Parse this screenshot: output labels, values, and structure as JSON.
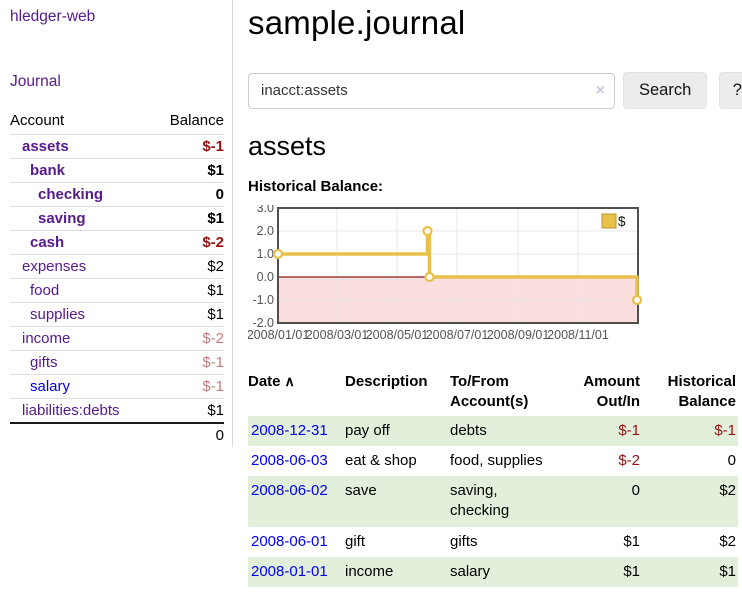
{
  "sidebar": {
    "app_title": "hledger-web",
    "journal_link": "Journal",
    "accounts_table": {
      "headers": [
        "Account",
        "Balance"
      ],
      "rows": [
        {
          "account": "assets",
          "balance": "$-1",
          "indent": 1,
          "bold": true,
          "balance_style": "neg-strong",
          "link_color": "purple"
        },
        {
          "account": "bank",
          "balance": "$1",
          "indent": 2,
          "bold": true,
          "balance_style": "",
          "link_color": "purple"
        },
        {
          "account": "checking",
          "balance": "0",
          "indent": 3,
          "bold": true,
          "balance_style": "",
          "link_color": "purple"
        },
        {
          "account": "saving",
          "balance": "$1",
          "indent": 3,
          "bold": true,
          "balance_style": "",
          "link_color": "purple"
        },
        {
          "account": "cash",
          "balance": "$-2",
          "indent": 2,
          "bold": true,
          "balance_style": "neg-strong",
          "link_color": "purple"
        },
        {
          "account": "expenses",
          "balance": "$2",
          "indent": 1,
          "bold": false,
          "balance_style": "",
          "link_color": "purple"
        },
        {
          "account": "food",
          "balance": "$1",
          "indent": 2,
          "bold": false,
          "balance_style": "",
          "link_color": "purple"
        },
        {
          "account": "supplies",
          "balance": "$1",
          "indent": 2,
          "bold": false,
          "balance_style": "",
          "link_color": "purple"
        },
        {
          "account": "income",
          "balance": "$-2",
          "indent": 1,
          "bold": false,
          "balance_style": "neg-muted",
          "link_color": "purple"
        },
        {
          "account": "gifts",
          "balance": "$-1",
          "indent": 2,
          "bold": false,
          "balance_style": "neg-muted",
          "link_color": "purple"
        },
        {
          "account": "salary",
          "balance": "$-1",
          "indent": 2,
          "bold": false,
          "balance_style": "neg-muted",
          "link_color": "blue"
        },
        {
          "account": "liabilities:debts",
          "balance": "$1",
          "indent": 1,
          "bold": false,
          "balance_style": "",
          "link_color": "purple"
        }
      ],
      "total": "0"
    }
  },
  "main": {
    "title": "sample.journal",
    "search": {
      "value": "inacct:assets",
      "clear_icon": "×",
      "search_button": "Search",
      "help_button": "?"
    },
    "account_heading": "assets",
    "chart_label": "Historical Balance:"
  },
  "chart_data": {
    "type": "line",
    "mode": "step-after",
    "title": "Historical Balance",
    "series": [
      {
        "name": "$",
        "color": "#e8c04a",
        "points": [
          [
            "2008-01-01",
            1
          ],
          [
            "2008-06-01",
            2
          ],
          [
            "2008-06-03",
            0
          ],
          [
            "2008-12-31",
            -1
          ]
        ]
      }
    ],
    "x_domain": [
      "2008-01-01",
      "2009-01-01"
    ],
    "ylim": [
      -2,
      3
    ],
    "yticks": [
      "3.0",
      "2.0",
      "1.0",
      "0.0",
      "-1.0",
      "-2.0"
    ],
    "xticks": [
      "2008/01/01",
      "2008/03/01",
      "2008/05/01",
      "2008/07/01",
      "2008/09/01",
      "2008/11/01"
    ],
    "legend": "$",
    "legend_position": "top-right",
    "grid": true,
    "negative_region_fill": "#fbdfdf",
    "zero_line_color": "#8b1a1a",
    "grid_color": "#e8e8e8",
    "border_color": "#4f4f4f"
  },
  "register": {
    "headers": [
      {
        "lines": [
          "Date"
        ],
        "align": "left",
        "sort": "asc"
      },
      {
        "lines": [
          "Description"
        ],
        "align": "left"
      },
      {
        "lines": [
          "To/From",
          "Account(s)"
        ],
        "align": "left"
      },
      {
        "lines": [
          "Amount",
          "Out/In"
        ],
        "align": "right"
      },
      {
        "lines": [
          "Historical",
          "Balance"
        ],
        "align": "right"
      }
    ],
    "sort_icon": "∧",
    "rows": [
      {
        "date": "2008-12-31",
        "description": "pay off",
        "accounts": "debts",
        "amount": "$-1",
        "balance": "$-1",
        "amount_neg": true,
        "balance_neg": true,
        "shaded": true
      },
      {
        "date": "2008-06-03",
        "description": "eat & shop",
        "accounts": "food, supplies",
        "amount": "$-2",
        "balance": "0",
        "amount_neg": true,
        "balance_neg": false,
        "shaded": false
      },
      {
        "date": "2008-06-02",
        "description": "save",
        "accounts": "saving, checking",
        "amount": "0",
        "balance": "$2",
        "amount_neg": false,
        "balance_neg": false,
        "shaded": true
      },
      {
        "date": "2008-06-01",
        "description": "gift",
        "accounts": "gifts",
        "amount": "$1",
        "balance": "$2",
        "amount_neg": false,
        "balance_neg": false,
        "shaded": false
      },
      {
        "date": "2008-01-01",
        "description": "income",
        "accounts": "salary",
        "amount": "$1",
        "balance": "$1",
        "amount_neg": false,
        "balance_neg": false,
        "shaded": true
      }
    ]
  }
}
